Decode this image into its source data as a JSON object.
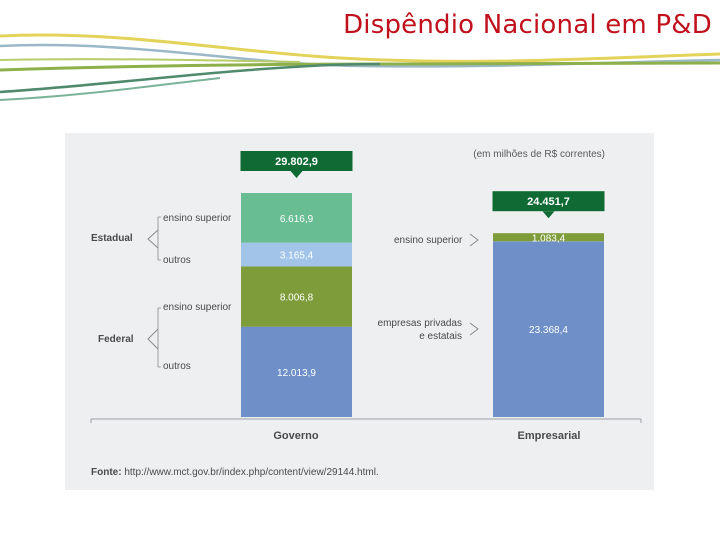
{
  "slide": {
    "title": "Dispêndio Nacional em P&D"
  },
  "chart_data": {
    "type": "bar",
    "stacked": true,
    "unit_note": "(em milhões de R$ correntes)",
    "categories": [
      "Governo",
      "Empresarial"
    ],
    "totals": {
      "governo": "29.802,9",
      "empresarial": "24.451,7"
    },
    "totals_values": [
      29802.9,
      24451.7
    ],
    "governo_segments": [
      {
        "label": "ensino superior",
        "group": "Estadual",
        "value": 6616.9,
        "value_label": "6.616,9",
        "color": "#68bd93"
      },
      {
        "label": "outros",
        "group": "Estadual",
        "value": 3165.4,
        "value_label": "3.165,4",
        "color": "#a2c4e8"
      },
      {
        "label": "ensino superior",
        "group": "Federal",
        "value": 8006.8,
        "value_label": "8.006,8",
        "color": "#7e9c3a"
      },
      {
        "label": "outros",
        "group": "Federal",
        "value": 12013.9,
        "value_label": "12.013,9",
        "color": "#6e8fc7"
      }
    ],
    "empresarial_segments": [
      {
        "label": "ensino superior",
        "value": 1083.4,
        "value_label": "1.083,4",
        "color": "#7e9c3a"
      },
      {
        "label": "empresas privadas\ne estatais",
        "label_line1": "empresas privadas",
        "label_line2": "e estatais",
        "value": 23368.4,
        "value_label": "23.368,4",
        "color": "#6e8fc7"
      }
    ],
    "groups": {
      "estadual": "Estadual",
      "federal": "Federal"
    },
    "source_label": "Fonte:",
    "source_text": " http://www.mct.gov.br/index.php/content/view/29144.html.",
    "colors": {
      "total_box": "#0f6b33",
      "axis": "#9aa0a6",
      "text": "#4a4a4a"
    }
  }
}
